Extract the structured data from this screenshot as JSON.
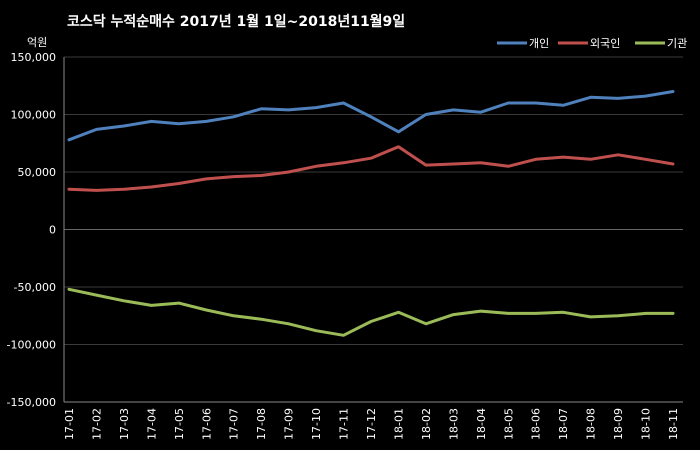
{
  "chart_data": {
    "type": "line",
    "title": "코스닥  누적순매수 2017년 1월 1일~2018년11월9일",
    "unit_label": "억원",
    "ylim": [
      -150000,
      150000
    ],
    "y_ticks": [
      150000,
      100000,
      50000,
      0,
      -50000,
      -100000,
      -150000
    ],
    "y_tick_labels": [
      "150,000",
      "100,000",
      "50,000",
      "0",
      "-50,000",
      "-100,000",
      "-150,000"
    ],
    "x_labels": [
      "17-01",
      "17-02",
      "17-03",
      "17-04",
      "17-05",
      "17-06",
      "17-07",
      "17-08",
      "17-09",
      "17-10",
      "17-11",
      "17-12",
      "18-01",
      "18-02",
      "18-03",
      "18-04",
      "18-05",
      "18-06",
      "18-07",
      "18-08",
      "18-09",
      "18-10",
      "18-11"
    ],
    "grid": true,
    "legend_position": "top-right",
    "colors": {
      "background": "#000000",
      "plot_background": "#000000",
      "grid": "#3a3a3a"
    },
    "series": [
      {
        "name": "개인",
        "color": "#4f81bd",
        "values": [
          78000,
          87000,
          90000,
          94000,
          92000,
          94000,
          98000,
          105000,
          104000,
          106000,
          110000,
          98000,
          85000,
          100000,
          104000,
          102000,
          110000,
          110000,
          108000,
          115000,
          114000,
          116000,
          120000
        ]
      },
      {
        "name": "외국인",
        "color": "#c0504d",
        "values": [
          35000,
          34000,
          35000,
          37000,
          40000,
          44000,
          46000,
          47000,
          50000,
          55000,
          58000,
          62000,
          72000,
          56000,
          57000,
          58000,
          55000,
          61000,
          63000,
          61000,
          65000,
          61000,
          57000
        ]
      },
      {
        "name": "기관",
        "color": "#9bbb59",
        "values": [
          -52000,
          -57000,
          -62000,
          -66000,
          -64000,
          -70000,
          -75000,
          -78000,
          -82000,
          -88000,
          -92000,
          -80000,
          -72000,
          -82000,
          -74000,
          -71000,
          -73000,
          -73000,
          -72000,
          -76000,
          -75000,
          -73000,
          -73000
        ]
      }
    ]
  }
}
